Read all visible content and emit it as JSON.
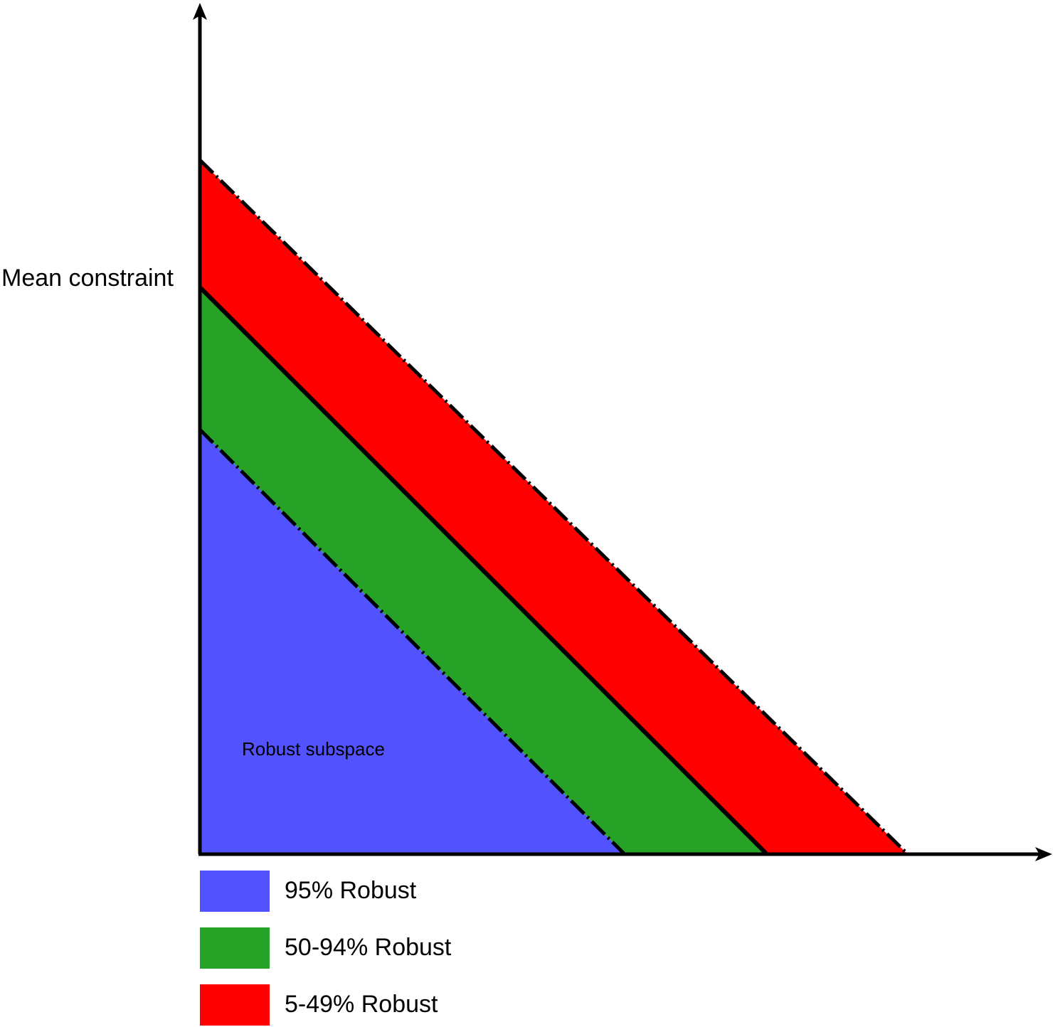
{
  "y_axis_label": "Mean constraint",
  "region_label": "Robust subspace",
  "legend": [
    {
      "label": "95% Robust",
      "color": "#5252ff"
    },
    {
      "label": "50-94% Robust",
      "color": "#26a326"
    },
    {
      "label": "5-49% Robust",
      "color": "#ff0000"
    }
  ]
}
